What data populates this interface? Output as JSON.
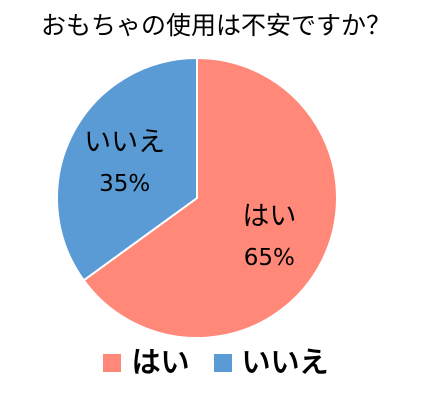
{
  "chart_data": {
    "type": "pie",
    "title": "おもちゃの使用は不安ですか？",
    "slices": [
      {
        "label": "はい",
        "value": 65,
        "value_label": "65%",
        "color": "#FF8878"
      },
      {
        "label": "いいえ",
        "value": 35,
        "value_label": "35%",
        "color": "#5B9BD5"
      }
    ],
    "start": "12 o'clock",
    "direction": "clockwise",
    "legend_position": "bottom"
  }
}
